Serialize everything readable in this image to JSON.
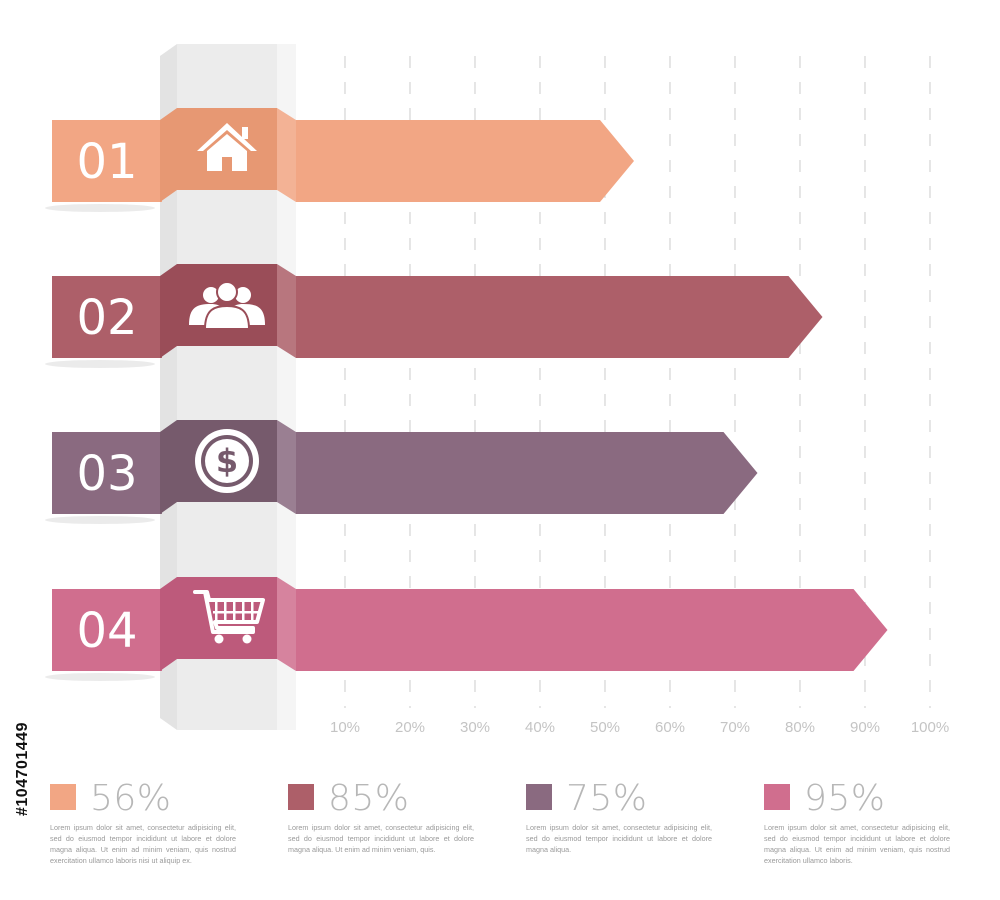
{
  "chart_data": {
    "type": "bar",
    "orientation": "horizontal",
    "categories": [
      "01",
      "02",
      "03",
      "04"
    ],
    "values": [
      56,
      85,
      75,
      95
    ],
    "unit": "%",
    "xlim": [
      0,
      100
    ],
    "ticks": [
      "10%",
      "20%",
      "30%",
      "40%",
      "50%",
      "60%",
      "70%",
      "80%",
      "90%",
      "100%"
    ],
    "grid": true,
    "icons": [
      "home-icon",
      "people-icon",
      "dollar-coin-icon",
      "shopping-cart-icon"
    ],
    "colors": [
      "#f2a684",
      "#ad5f69",
      "#8a6a80",
      "#d06e8e"
    ],
    "dark_colors": [
      "#e79873",
      "#9a4d58",
      "#765a6c",
      "#bd5a7b"
    ],
    "legend": [
      {
        "value": "56%",
        "color": "#f2a684",
        "text": "Lorem ipsum dolor sit amet, consectetur adipisicing elit, sed do eiusmod tempor incididunt ut labore et dolore magna aliqua. Ut enim ad minim veniam, quis nostrud exercitation ullamco laboris nisi ut aliquip ex."
      },
      {
        "value": "85%",
        "color": "#ad5f69",
        "text": "Lorem ipsum dolor sit amet, consectetur adipisicing elit, sed do eiusmod tempor incididunt ut labore et dolore magna aliqua. Ut enim ad minim veniam, quis."
      },
      {
        "value": "75%",
        "color": "#8a6a80",
        "text": "Lorem ipsum dolor sit amet, consectetur adipisicing elit, sed do eiusmod tempor incididunt ut labore et dolore magna aliqua."
      },
      {
        "value": "95%",
        "color": "#d06e8e",
        "text": "Lorem ipsum dolor sit amet, consectetur adipisicing elit, sed do eiusmod tempor incididunt ut labore et dolore magna aliqua. Ut enim ad minim veniam, quis nostrud exercitation ullamco laboris."
      }
    ]
  },
  "image_id": "#104701449"
}
